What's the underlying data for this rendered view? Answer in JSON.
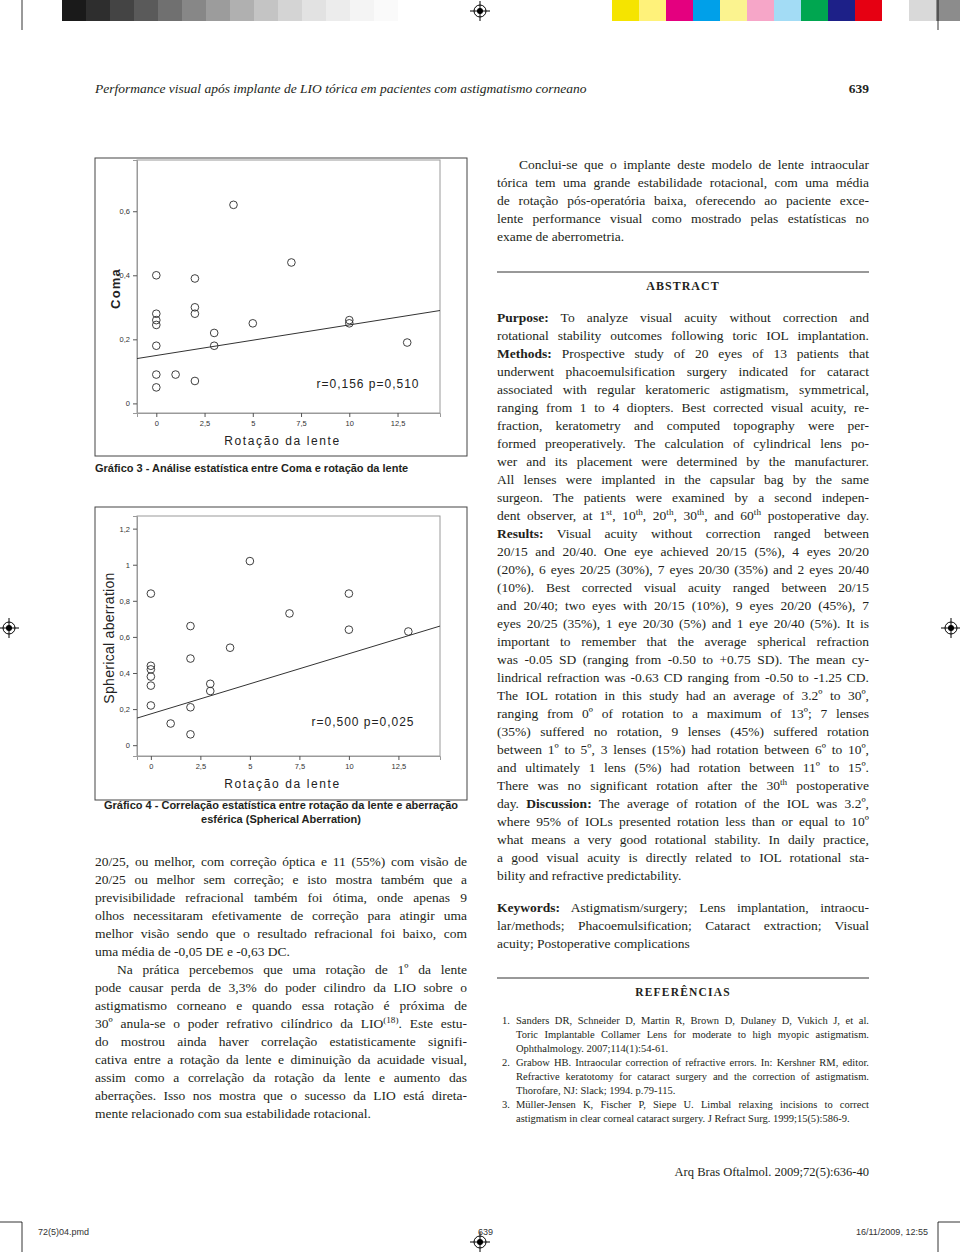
{
  "header": {
    "running_title": "Performance visual após implante de LIO tórica em pacientes com astigmatismo corneano",
    "page": "639"
  },
  "chart_data": [
    {
      "type": "scatter",
      "title": "Gráfico 3 - Análise estatística entre Coma e rotação da lente",
      "x_label": "Rotação da lente",
      "y_label": "Coma",
      "marker": "circle",
      "grid": false,
      "x": [
        0,
        0,
        0,
        0,
        0,
        0,
        0,
        1,
        2,
        2,
        2,
        2,
        3,
        3,
        4,
        5,
        7,
        10,
        10,
        13
      ],
      "values": [
        0.4,
        0.28,
        0.26,
        0.245,
        0.18,
        0.09,
        0.05,
        0.09,
        0.39,
        0.3,
        0.28,
        0.07,
        0.22,
        0.18,
        0.62,
        0.25,
        0.44,
        0.26,
        0.25,
        0.19
      ],
      "fit_line": {
        "x": [
          -1,
          14.7
        ],
        "values": [
          0.14,
          0.29
        ]
      },
      "annotations": [
        "r=0,156 p=0,510"
      ],
      "xlim": [
        -1,
        14.7
      ],
      "ylim": [
        -0.03,
        0.76
      ],
      "xticks": [
        0,
        {
          "value": 2.5,
          "label": "2,5"
        },
        5,
        {
          "value": 7.5,
          "label": "7,5"
        },
        10,
        {
          "value": 12.5,
          "label": "12,5"
        }
      ],
      "yticks": [
        0,
        {
          "value": 0.2,
          "label": "0,2"
        },
        {
          "value": 0.4,
          "label": "0,4"
        },
        {
          "value": 0.6,
          "label": "0,6"
        }
      ]
    },
    {
      "type": "scatter",
      "title": [
        "Gráfico 4 - Correlação estatística entre rotação da lente e aberração",
        "esférica (Spherical Aberration)"
      ],
      "x_label": "Rotação da lente",
      "y_label": "Spherical aberration",
      "marker": "circle",
      "grid": false,
      "x": [
        0,
        0,
        0,
        0,
        0,
        0,
        1,
        2,
        2,
        2,
        2,
        3,
        3,
        4,
        5,
        7,
        10,
        10,
        13
      ],
      "values": [
        0.84,
        0.44,
        0.42,
        0.38,
        0.33,
        0.22,
        0.12,
        0.66,
        0.48,
        0.21,
        0.06,
        0.34,
        0.3,
        0.54,
        1.02,
        0.73,
        0.84,
        0.64,
        0.63
      ],
      "fit_line": {
        "x": [
          -0.7,
          14.6
        ],
        "values": [
          0.15,
          0.66
        ]
      },
      "annotations": [
        "r=0,500 p=0,025"
      ],
      "xlim": [
        -0.7,
        14.6
      ],
      "ylim": [
        -0.06,
        1.27
      ],
      "xticks": [
        0,
        {
          "value": 2.5,
          "label": "2,5"
        },
        5,
        {
          "value": 7.5,
          "label": "7,5"
        },
        10,
        {
          "value": 12.5,
          "label": "12,5"
        }
      ],
      "yticks": [
        0,
        {
          "value": 0.2,
          "label": "0,2"
        },
        {
          "value": 0.4,
          "label": "0,4"
        },
        {
          "value": 0.6,
          "label": "0,6"
        },
        {
          "value": 0.8,
          "label": "0,8"
        },
        1,
        {
          "value": 1.2,
          "label": "1,2"
        }
      ]
    }
  ],
  "left_column": {
    "paragraphs": [
      [
        "20/25, ou melhor, com correção óptica e 11 (55%) com visão de",
        "20/25 ou melhor sem correção; e isto mostra também que a",
        "previsibilidade refracional também foi ótima, onde apenas 9",
        "olhos necessitaram efetivamente de correção para atingir uma",
        "melhor visão sendo que o resultado refracional foi baixo, com",
        "uma média de -0,05 DE e -0,63 DC."
      ],
      [
        "Na prática percebemos que uma rotação de 1º da lente",
        "pode causar perda de 3,3% do poder cilindro da LIO sobre o",
        "astigmatismo corneano e quando essa rotação é próxima de",
        [
          "30º anula-se o poder refrativo cilíndrico da LIO",
          {
            "sup": "(18)"
          },
          ". Este estu-"
        ],
        "do mostrou ainda haver correlação estatisticamente signifi-",
        "cativa entre a rotação da lente e diminuição da acuidade visual,",
        "assim como a correlação da rotação da lente e aumento das",
        "aberrações. Isso nos mostra que o sucesso da LIO está direta-",
        "mente relacionado com sua estabilidade rotacional."
      ]
    ]
  },
  "right_column": {
    "paragraphs": [
      [
        "Conclui-se que o implante deste modelo de lente intraocular",
        "tórica tem uma grande estabilidade rotacional, com uma média",
        "de rotação pós-operatória baixa, oferecendo ao paciente exce-",
        "lente performance visual como mostrado pelas estatísticas no",
        "exame de aberrometria."
      ]
    ]
  },
  "abstract": {
    "heading": "ABSTRACT",
    "paragraphs": [
      [
        [
          {
            "b": "Purpose:"
          },
          " To analyze visual acuity without correction and"
        ],
        "rotational stability outcomes following toric IOL implantation.",
        [
          {
            "b": "Methods:"
          },
          " Prospective study of 20 eyes of 13 patients that"
        ],
        "underwent phacoemulsification surgery indicated for cataract",
        "associated with regular keratomeric astigmatism, symmetrical,",
        "ranging from 1 to 4 diopters. Best corrected visual acuity, re-",
        "fraction, keratometry and computed topography were per-",
        "formed preoperatively. The calculation of cylindrical lens po-",
        "wer and its placement were determined by the manufacturer.",
        "All lenses were implanted in the capsular bag by the same",
        "surgeon. The patients were examined by a second indepen-",
        [
          "dent observer, at 1",
          {
            "sup": "st"
          },
          ", 10",
          {
            "sup": "th"
          },
          ", 20",
          {
            "sup": "th"
          },
          ", 30",
          {
            "sup": "th"
          },
          ", and 60",
          {
            "sup": "th"
          },
          " postoperative day."
        ],
        [
          {
            "b": "Results:"
          },
          " Visual acuity without correction ranged between"
        ],
        "20/15 and 20/40. One eye achieved 20/15 (5%), 4 eyes 20/20",
        "(20%), 6 eyes 20/25 (30%), 7 eyes 20/30 (35%) and 2 eyes 20/40",
        "(10%). Best corrected visual acuity ranged between 20/15",
        "and 20/40; two eyes with 20/15 (10%), 9 eyes 20/20 (45%), 7",
        "eyes 20/25 (35%), 1 eye 20/30 (5%) and 1 eye 20/40 (5%). It is",
        "important to remember that the average spherical refraction",
        "was -0.05 SD (ranging from -0.50 to +0.75 SD). The mean cy-",
        "lindrical refraction was -0.63 CD ranging from -0.50 to -1.25 CD.",
        "The IOL rotation in this study had an average of 3.2º to 30º,",
        "ranging from 0º of rotation to a maximum of 13º; 7 lenses",
        "(35%) suffered no rotation, 9 lenses (45%) suffered rotation",
        "between 1º to 5º, 3 lenses (15%) had rotation between 6º to 10º,",
        "and ultimately 1 lens (5%) had rotation between 11º to 15º.",
        [
          "There was no significant rotation after the 30",
          {
            "sup": "th"
          },
          " postoperative"
        ],
        [
          "day. ",
          {
            "b": "Discussion:"
          },
          " The average of rotation of the IOL was 3.2º,"
        ],
        "where 95% of IOLs presented rotation less than or equal to 10º",
        "what means a very good rotational stability. In daily practice,",
        "a good visual acuity is directly related to IOL rotational sta-",
        "bility and refractive predictability."
      ],
      [
        [
          {
            "b": "Keywords:"
          },
          " Astigmatism/surgery; Lens implantation, intraocu-"
        ],
        "lar/methods; Phacoemulsification; Cataract extraction; Visual",
        "acuity; Postoperative complications"
      ]
    ]
  },
  "references": {
    "heading": "REFERÊNCIAS",
    "items": [
      {
        "number": "1.",
        "lines": [
          "Sanders DR, Schneider D, Martin R, Brown D, Dulaney D, Vukich J, et al.",
          "Toric Implantable Collamer Lens for moderate to high myopic astigmatism.",
          "Ophthalmology. 2007;114(1):54-61."
        ]
      },
      {
        "number": "2.",
        "lines": [
          "Grabow HB. Intraocular correction of refractive errors. In: Kershner RM, editor.",
          "Refractive keratotomy for cataract surgery and the correction of astigmatism.",
          "Thorofare, NJ: Slack; 1994. p.79-115."
        ]
      },
      {
        "number": "3.",
        "lines": [
          "Müller-Jensen K, Fischer P, Siepe U. Limbal relaxing incisions to correct",
          "astigmatism in clear corneal cataract surgery. J Refract Surg. 1999;15(5):586-9."
        ]
      }
    ]
  },
  "footer": {
    "citation": "Arq Bras Oftalmol. 2009;72(5):636-40",
    "slug": [
      "72(5)04.pmd",
      "639",
      "16/11/2009, 12:55"
    ]
  }
}
